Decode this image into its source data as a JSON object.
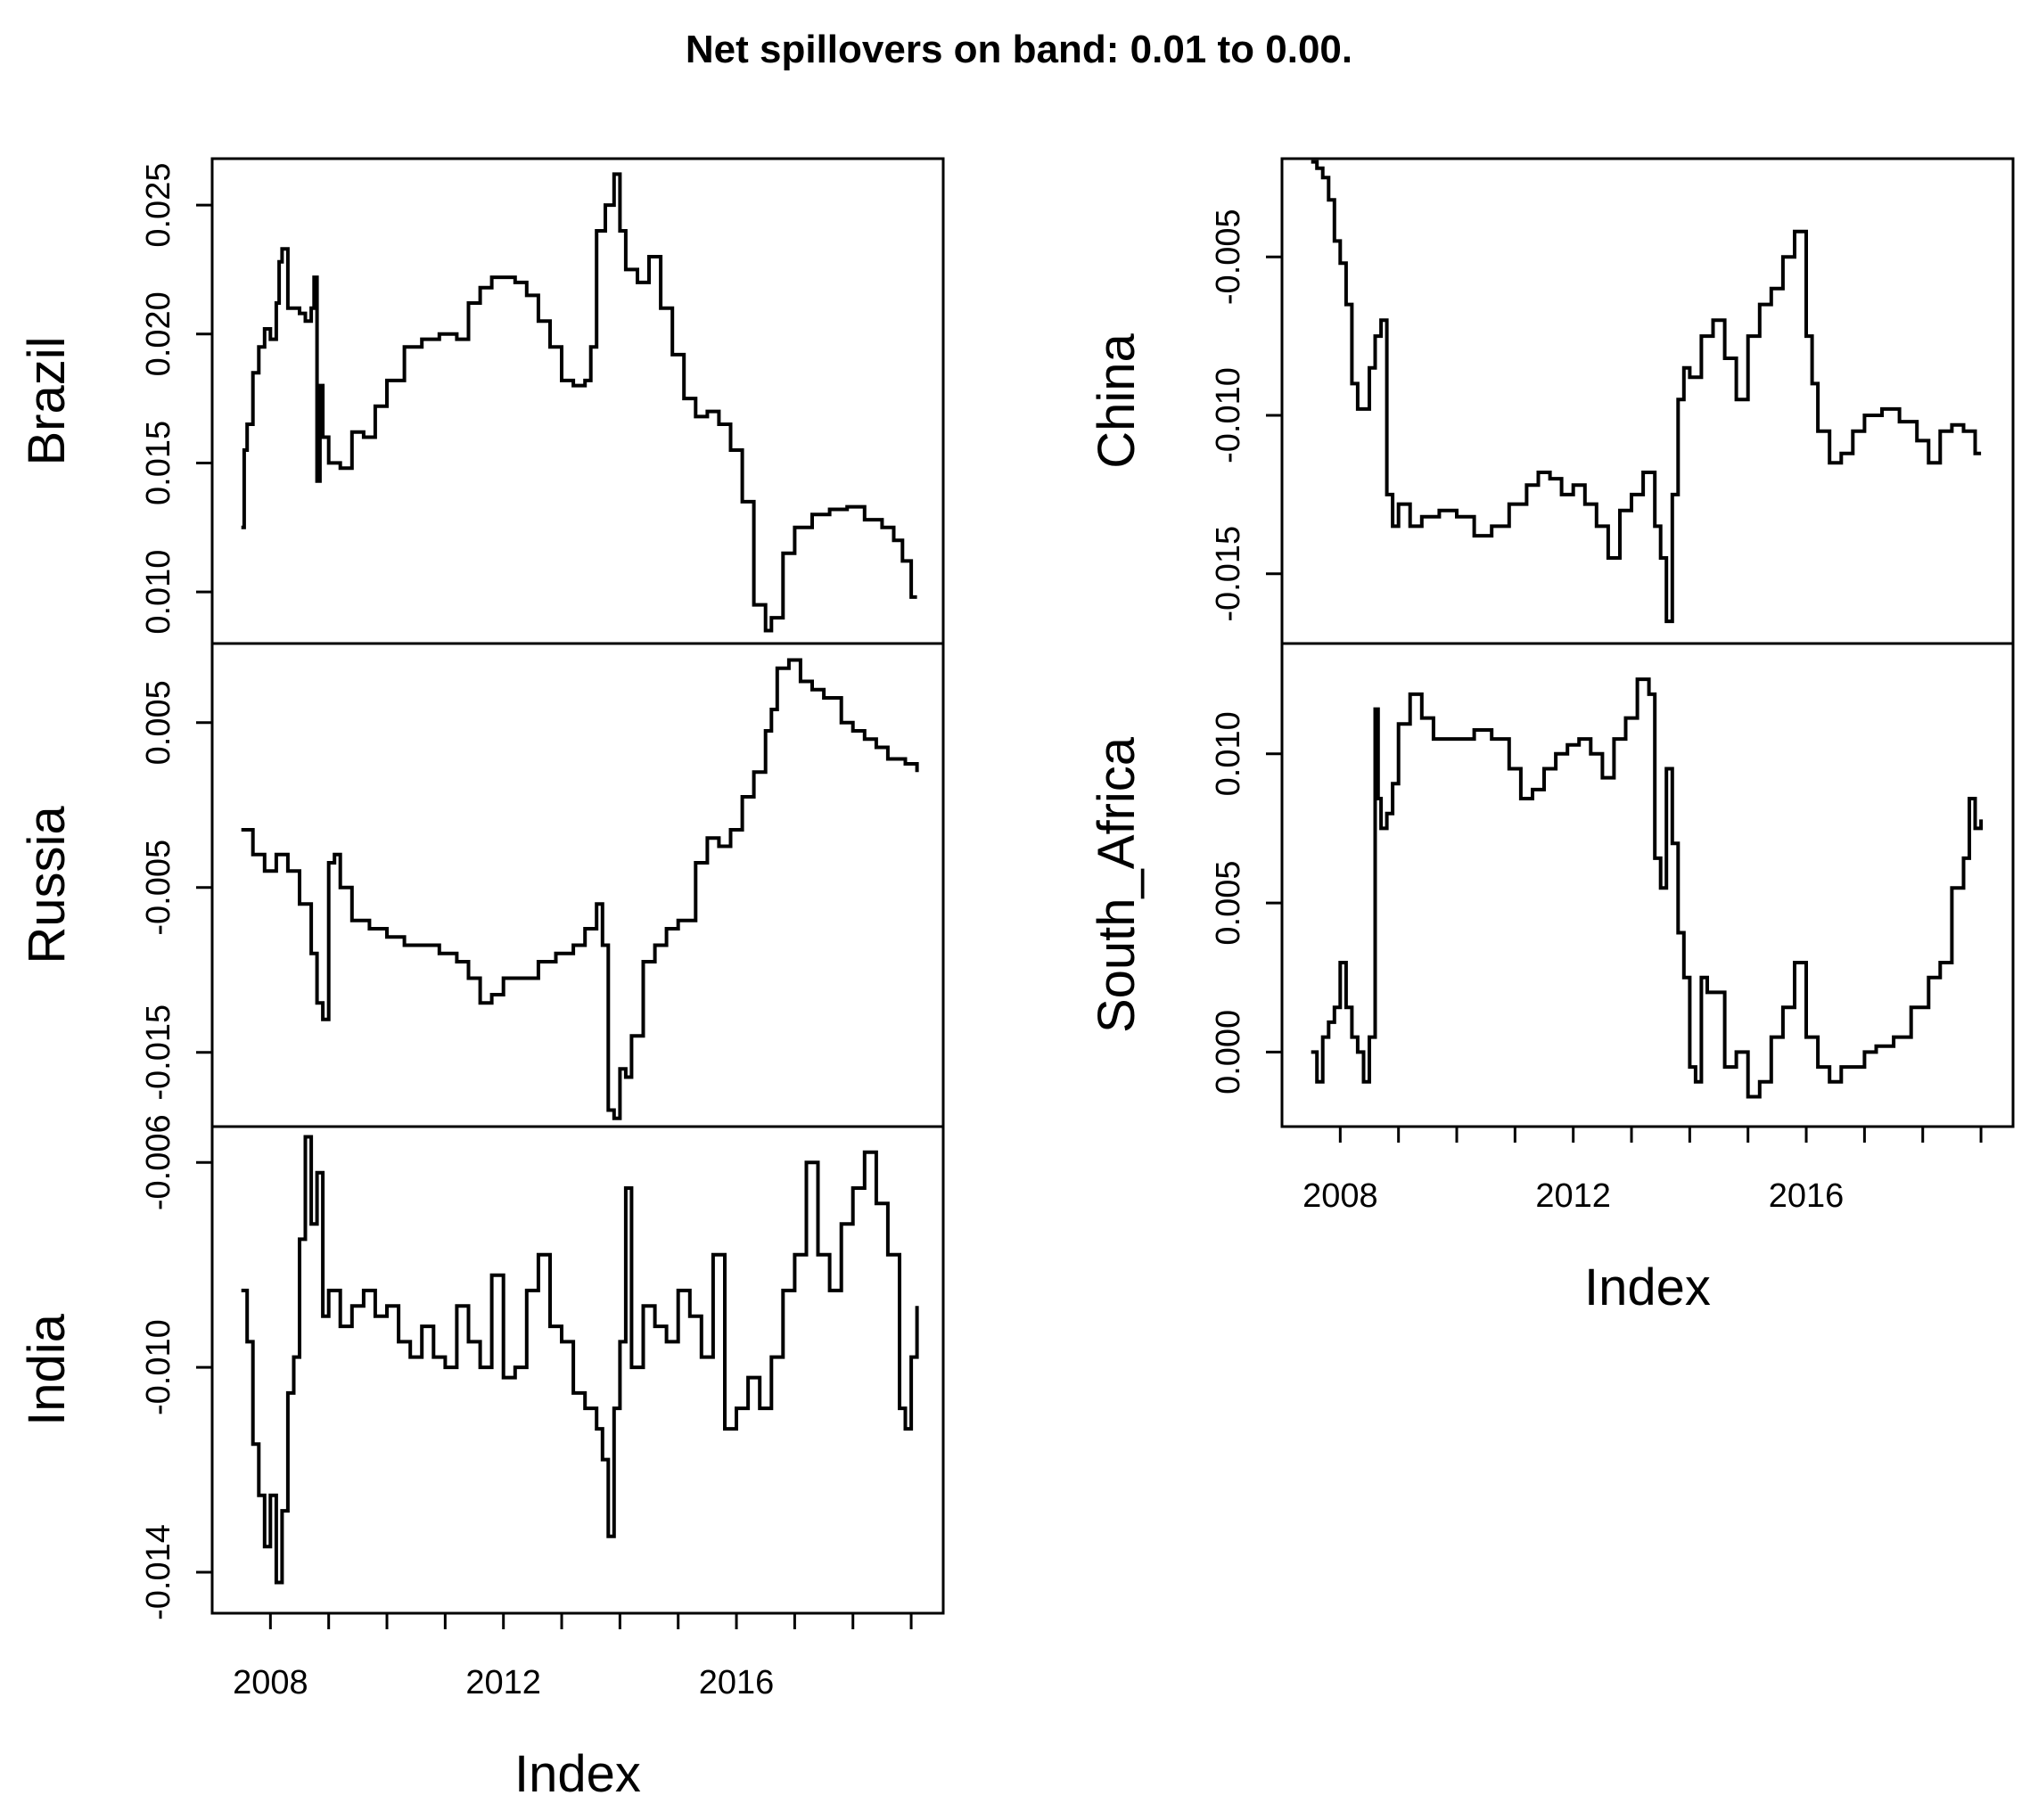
{
  "chart_data": {
    "type": "line",
    "title": "Net spillovers on band: 0.01 to 0.00.",
    "xlabel": "Index",
    "x_ticks": [
      2008,
      2012,
      2016
    ],
    "xlim": [
      2007.0,
      2019.55
    ],
    "panels": [
      {
        "name": "Brazil",
        "ylim": [
          0.008,
          0.0268
        ],
        "yticks": [
          0.01,
          0.015,
          0.02,
          0.025
        ],
        "ytick_labels": [
          "0.010",
          "0.015",
          "0.020",
          "0.025"
        ],
        "x": [
          2007.5,
          2007.55,
          2007.6,
          2007.7,
          2007.8,
          2007.9,
          2008.0,
          2008.1,
          2008.15,
          2008.2,
          2008.3,
          2008.5,
          2008.6,
          2008.7,
          2008.75,
          2008.8,
          2008.85,
          2008.9,
          2009.0,
          2009.2,
          2009.4,
          2009.6,
          2009.8,
          2010.0,
          2010.3,
          2010.6,
          2010.9,
          2011.2,
          2011.4,
          2011.6,
          2011.8,
          2012.0,
          2012.2,
          2012.4,
          2012.6,
          2012.8,
          2013.0,
          2013.2,
          2013.4,
          2013.5,
          2013.6,
          2013.75,
          2013.9,
          2014.0,
          2014.1,
          2014.3,
          2014.5,
          2014.7,
          2014.9,
          2015.1,
          2015.3,
          2015.5,
          2015.7,
          2015.9,
          2016.1,
          2016.3,
          2016.5,
          2016.6,
          2016.8,
          2017.0,
          2017.3,
          2017.6,
          2017.9,
          2018.2,
          2018.5,
          2018.7,
          2018.85,
          2019.0,
          2019.1
        ],
        "y": [
          0.0125,
          0.0155,
          0.0165,
          0.0185,
          0.0195,
          0.0202,
          0.0198,
          0.0212,
          0.0228,
          0.0233,
          0.021,
          0.0208,
          0.0205,
          0.021,
          0.0222,
          0.0143,
          0.018,
          0.016,
          0.015,
          0.0148,
          0.0162,
          0.016,
          0.0172,
          0.0182,
          0.0195,
          0.0198,
          0.02,
          0.0198,
          0.0212,
          0.0218,
          0.0222,
          0.0222,
          0.022,
          0.0215,
          0.0205,
          0.0195,
          0.0182,
          0.018,
          0.0182,
          0.0195,
          0.024,
          0.025,
          0.0262,
          0.024,
          0.0225,
          0.022,
          0.023,
          0.021,
          0.0192,
          0.0175,
          0.0168,
          0.017,
          0.0165,
          0.0155,
          0.0135,
          0.0095,
          0.0085,
          0.009,
          0.0115,
          0.0125,
          0.013,
          0.0132,
          0.0133,
          0.0128,
          0.0125,
          0.012,
          0.0112,
          0.0098,
          0.0098
        ]
      },
      {
        "name": "Russia",
        "ylim": [
          -0.0195,
          0.0098
        ],
        "yticks": [
          -0.015,
          -0.005,
          0.005
        ],
        "ytick_labels": [
          "-0.015",
          "-0.005",
          "0.005"
        ],
        "x": [
          2007.5,
          2007.7,
          2007.9,
          2008.1,
          2008.3,
          2008.5,
          2008.7,
          2008.8,
          2008.9,
          2009.0,
          2009.1,
          2009.2,
          2009.4,
          2009.7,
          2010.0,
          2010.3,
          2010.6,
          2010.9,
          2011.2,
          2011.4,
          2011.6,
          2011.8,
          2012.0,
          2012.3,
          2012.6,
          2012.9,
          2013.2,
          2013.4,
          2013.6,
          2013.7,
          2013.8,
          2013.9,
          2014.0,
          2014.1,
          2014.2,
          2014.4,
          2014.6,
          2014.8,
          2015.0,
          2015.3,
          2015.5,
          2015.7,
          2015.9,
          2016.1,
          2016.3,
          2016.5,
          2016.6,
          2016.7,
          2016.9,
          2017.1,
          2017.3,
          2017.5,
          2017.8,
          2018.0,
          2018.2,
          2018.4,
          2018.6,
          2018.9,
          2019.1
        ],
        "y": [
          -0.0015,
          -0.003,
          -0.004,
          -0.003,
          -0.004,
          -0.006,
          -0.009,
          -0.012,
          -0.013,
          -0.0035,
          -0.003,
          -0.005,
          -0.007,
          -0.0075,
          -0.008,
          -0.0085,
          -0.0085,
          -0.009,
          -0.0095,
          -0.0105,
          -0.012,
          -0.0115,
          -0.0105,
          -0.0105,
          -0.0095,
          -0.009,
          -0.0085,
          -0.0075,
          -0.006,
          -0.0085,
          -0.0185,
          -0.019,
          -0.016,
          -0.0165,
          -0.014,
          -0.0095,
          -0.0085,
          -0.0075,
          -0.007,
          -0.0035,
          -0.002,
          -0.0025,
          -0.0015,
          0.0005,
          0.002,
          0.0045,
          0.0058,
          0.0083,
          0.0088,
          0.0075,
          0.007,
          0.0065,
          0.005,
          0.0045,
          0.004,
          0.0035,
          0.0028,
          0.0025,
          0.002
        ]
      },
      {
        "name": "India",
        "ylim": [
          -0.0148,
          -0.0053
        ],
        "yticks": [
          -0.014,
          -0.01,
          -0.006
        ],
        "ytick_labels": [
          "-0.014",
          "-0.010",
          "-0.006"
        ],
        "x": [
          2007.5,
          2007.6,
          2007.7,
          2007.8,
          2007.9,
          2008.0,
          2008.1,
          2008.2,
          2008.3,
          2008.4,
          2008.5,
          2008.6,
          2008.7,
          2008.8,
          2008.9,
          2009.0,
          2009.2,
          2009.4,
          2009.6,
          2009.8,
          2010.0,
          2010.2,
          2010.4,
          2010.6,
          2010.8,
          2011.0,
          2011.2,
          2011.4,
          2011.6,
          2011.8,
          2012.0,
          2012.2,
          2012.4,
          2012.6,
          2012.8,
          2013.0,
          2013.2,
          2013.4,
          2013.6,
          2013.7,
          2013.8,
          2013.9,
          2014.0,
          2014.1,
          2014.2,
          2014.4,
          2014.6,
          2014.8,
          2015.0,
          2015.2,
          2015.4,
          2015.6,
          2015.8,
          2016.0,
          2016.2,
          2016.4,
          2016.6,
          2016.8,
          2017.0,
          2017.2,
          2017.4,
          2017.6,
          2017.8,
          2018.0,
          2018.2,
          2018.4,
          2018.6,
          2018.8,
          2018.9,
          2019.0,
          2019.1
        ],
        "y": [
          -0.0085,
          -0.0095,
          -0.0115,
          -0.0125,
          -0.0135,
          -0.0125,
          -0.0142,
          -0.0128,
          -0.0105,
          -0.0098,
          -0.0075,
          -0.0055,
          -0.0072,
          -0.0062,
          -0.009,
          -0.0085,
          -0.0092,
          -0.0088,
          -0.0085,
          -0.009,
          -0.0088,
          -0.0095,
          -0.0098,
          -0.0092,
          -0.0098,
          -0.01,
          -0.0088,
          -0.0095,
          -0.01,
          -0.0082,
          -0.0102,
          -0.01,
          -0.0085,
          -0.0078,
          -0.0092,
          -0.0095,
          -0.0105,
          -0.0108,
          -0.0112,
          -0.0118,
          -0.0133,
          -0.0108,
          -0.0095,
          -0.0065,
          -0.01,
          -0.0088,
          -0.0092,
          -0.0095,
          -0.0085,
          -0.009,
          -0.0098,
          -0.0078,
          -0.0112,
          -0.0108,
          -0.0102,
          -0.0108,
          -0.0098,
          -0.0085,
          -0.0078,
          -0.006,
          -0.0078,
          -0.0085,
          -0.0072,
          -0.0065,
          -0.0058,
          -0.0068,
          -0.0078,
          -0.0108,
          -0.0112,
          -0.0098,
          -0.0088
        ]
      },
      {
        "name": "China",
        "ylim": [
          -0.0172,
          -0.0019
        ],
        "yticks": [
          -0.015,
          -0.01,
          -0.005
        ],
        "ytick_labels": [
          "-0.015",
          "-0.010",
          "-0.005"
        ],
        "x": [
          2007.5,
          2007.6,
          2007.7,
          2007.8,
          2007.9,
          2008.0,
          2008.1,
          2008.2,
          2008.3,
          2008.5,
          2008.6,
          2008.7,
          2008.8,
          2008.9,
          2009.0,
          2009.2,
          2009.4,
          2009.7,
          2010.0,
          2010.3,
          2010.6,
          2010.9,
          2011.2,
          2011.4,
          2011.6,
          2011.8,
          2012.0,
          2012.2,
          2012.4,
          2012.6,
          2012.8,
          2013.0,
          2013.2,
          2013.4,
          2013.5,
          2013.6,
          2013.7,
          2013.8,
          2013.9,
          2014.0,
          2014.2,
          2014.4,
          2014.6,
          2014.8,
          2015.0,
          2015.2,
          2015.4,
          2015.6,
          2015.8,
          2016.0,
          2016.1,
          2016.2,
          2016.4,
          2016.6,
          2016.8,
          2017.0,
          2017.3,
          2017.6,
          2017.9,
          2018.1,
          2018.3,
          2018.5,
          2018.7,
          2018.9,
          2019.0
        ],
        "y": [
          -0.002,
          -0.0022,
          -0.0025,
          -0.0032,
          -0.0045,
          -0.0052,
          -0.0065,
          -0.009,
          -0.0098,
          -0.0085,
          -0.0075,
          -0.007,
          -0.0125,
          -0.0135,
          -0.0128,
          -0.0135,
          -0.0132,
          -0.013,
          -0.0132,
          -0.0138,
          -0.0135,
          -0.0128,
          -0.0122,
          -0.0118,
          -0.012,
          -0.0125,
          -0.0122,
          -0.0128,
          -0.0135,
          -0.0145,
          -0.013,
          -0.0125,
          -0.0118,
          -0.0135,
          -0.0145,
          -0.0165,
          -0.0125,
          -0.0095,
          -0.0085,
          -0.0088,
          -0.0075,
          -0.007,
          -0.0082,
          -0.0095,
          -0.0075,
          -0.0065,
          -0.006,
          -0.005,
          -0.0042,
          -0.0075,
          -0.009,
          -0.0105,
          -0.0115,
          -0.0112,
          -0.0105,
          -0.01,
          -0.0098,
          -0.0102,
          -0.0108,
          -0.0115,
          -0.0105,
          -0.0103,
          -0.0105,
          -0.0112,
          -0.0112
        ]
      },
      {
        "name": "South_Africa",
        "ylim": [
          -0.0025,
          0.0137
        ],
        "yticks": [
          0.0,
          0.005,
          0.01
        ],
        "ytick_labels": [
          "0.000",
          "0.005",
          "0.010"
        ],
        "x": [
          2007.5,
          2007.6,
          2007.7,
          2007.8,
          2007.9,
          2008.0,
          2008.1,
          2008.2,
          2008.3,
          2008.4,
          2008.5,
          2008.6,
          2008.65,
          2008.7,
          2008.8,
          2008.9,
          2009.0,
          2009.2,
          2009.4,
          2009.6,
          2009.8,
          2010.0,
          2010.3,
          2010.6,
          2010.9,
          2011.1,
          2011.3,
          2011.5,
          2011.7,
          2011.9,
          2012.1,
          2012.3,
          2012.5,
          2012.7,
          2012.9,
          2013.1,
          2013.3,
          2013.4,
          2013.5,
          2013.6,
          2013.7,
          2013.8,
          2013.9,
          2014.0,
          2014.1,
          2014.2,
          2014.3,
          2014.4,
          2014.6,
          2014.8,
          2015.0,
          2015.2,
          2015.4,
          2015.6,
          2015.8,
          2016.0,
          2016.2,
          2016.4,
          2016.6,
          2016.8,
          2017.0,
          2017.2,
          2017.5,
          2017.8,
          2018.1,
          2018.3,
          2018.5,
          2018.7,
          2018.8,
          2018.9,
          2019.0
        ],
        "y": [
          0.0,
          -0.001,
          0.0005,
          0.001,
          0.0015,
          0.003,
          0.0015,
          0.0005,
          0.0,
          -0.001,
          0.0005,
          0.0115,
          0.0085,
          0.0075,
          0.008,
          0.009,
          0.011,
          0.012,
          0.0112,
          0.0105,
          0.0105,
          0.0105,
          0.0108,
          0.0105,
          0.0095,
          0.0085,
          0.0088,
          0.0095,
          0.01,
          0.0103,
          0.0105,
          0.01,
          0.0092,
          0.0105,
          0.0112,
          0.0125,
          0.012,
          0.0065,
          0.0055,
          0.0095,
          0.007,
          0.004,
          0.0025,
          -0.0005,
          -0.001,
          0.0025,
          0.002,
          0.002,
          -0.0005,
          0.0,
          -0.0015,
          -0.001,
          0.0005,
          0.0015,
          0.003,
          0.0005,
          -0.0005,
          -0.001,
          -0.0005,
          -0.0005,
          0.0,
          0.0002,
          0.0005,
          0.0015,
          0.0025,
          0.003,
          0.0055,
          0.0065,
          0.0085,
          0.0075,
          0.0078
        ]
      }
    ]
  }
}
